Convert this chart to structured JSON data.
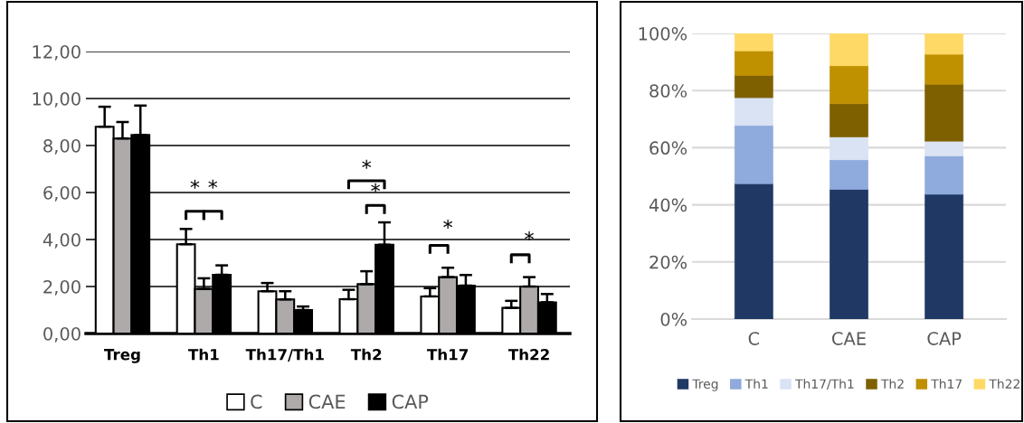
{
  "chart_data": [
    {
      "type": "bar",
      "categories": [
        "Treg",
        "Th1",
        "Th17/Th1",
        "Th2",
        "Th17",
        "Th22"
      ],
      "series": [
        {
          "name": "C",
          "color": "#ffffff",
          "values": [
            8.8,
            3.8,
            1.8,
            1.46,
            1.58,
            1.09
          ],
          "errors": [
            [
              8.8,
              9.65
            ],
            [
              3.8,
              4.45
            ],
            [
              1.8,
              2.15
            ],
            [
              1.46,
              1.86
            ],
            [
              1.58,
              1.93
            ],
            [
              1.09,
              1.39
            ]
          ]
        },
        {
          "name": "CAE",
          "color": "#aeaaaa",
          "values": [
            8.3,
            1.9,
            1.45,
            2.1,
            2.4,
            2.0
          ],
          "errors": [
            [
              8.3,
              9.0
            ],
            [
              1.9,
              2.35
            ],
            [
              1.45,
              1.8
            ],
            [
              2.1,
              2.65
            ],
            [
              2.4,
              2.8
            ],
            [
              2.0,
              2.4
            ]
          ]
        },
        {
          "name": "CAP",
          "color": "#000000",
          "values": [
            8.45,
            2.5,
            1.0,
            3.78,
            2.04,
            1.33
          ],
          "errors": [
            [
              8.45,
              9.7
            ],
            [
              2.5,
              2.9
            ],
            [
              1.0,
              1.15
            ],
            [
              3.78,
              4.73
            ],
            [
              2.04,
              2.49
            ],
            [
              1.33,
              1.68
            ]
          ]
        }
      ],
      "ylim": [
        0,
        12
      ],
      "yticks": [
        {
          "value": 0,
          "label": "0,00"
        },
        {
          "value": 2,
          "label": "2,00"
        },
        {
          "value": 4,
          "label": "4,00"
        },
        {
          "value": 6,
          "label": "6,00"
        },
        {
          "value": 8,
          "label": "8,00"
        },
        {
          "value": 10,
          "label": "10,00"
        },
        {
          "value": 12,
          "label": "12,00"
        }
      ],
      "grid": "y",
      "legend": "bottom",
      "annotations": [
        "*",
        "*",
        "*",
        "*",
        "*",
        "*"
      ]
    },
    {
      "type": "bar",
      "stacked": true,
      "categories": [
        "C",
        "CAE",
        "CAP"
      ],
      "series": [
        {
          "name": "Treg",
          "color": "#203864",
          "values": [
            47.4,
            45.4,
            43.7
          ]
        },
        {
          "name": "Th1",
          "color": "#8faadc",
          "values": [
            20.4,
            10.4,
            13.4
          ]
        },
        {
          "name": "Th17/Th1",
          "color": "#dae3f3",
          "values": [
            9.7,
            8.0,
            5.2
          ]
        },
        {
          "name": "Th2",
          "color": "#7f6000",
          "values": [
            7.8,
            11.6,
            19.9
          ]
        },
        {
          "name": "Th17",
          "color": "#bf9000",
          "values": [
            8.6,
            13.3,
            10.5
          ]
        },
        {
          "name": "Th22",
          "color": "#ffd966",
          "values": [
            6.1,
            11.3,
            7.3
          ]
        }
      ],
      "ylim": [
        0,
        100
      ],
      "yticks": [
        {
          "value": 0,
          "label": "0%"
        },
        {
          "value": 20,
          "label": "20%"
        },
        {
          "value": 40,
          "label": "40%"
        },
        {
          "value": 60,
          "label": "60%"
        },
        {
          "value": 80,
          "label": "80%"
        },
        {
          "value": 100,
          "label": "100%"
        }
      ],
      "grid": "y",
      "legend": "bottom"
    }
  ]
}
